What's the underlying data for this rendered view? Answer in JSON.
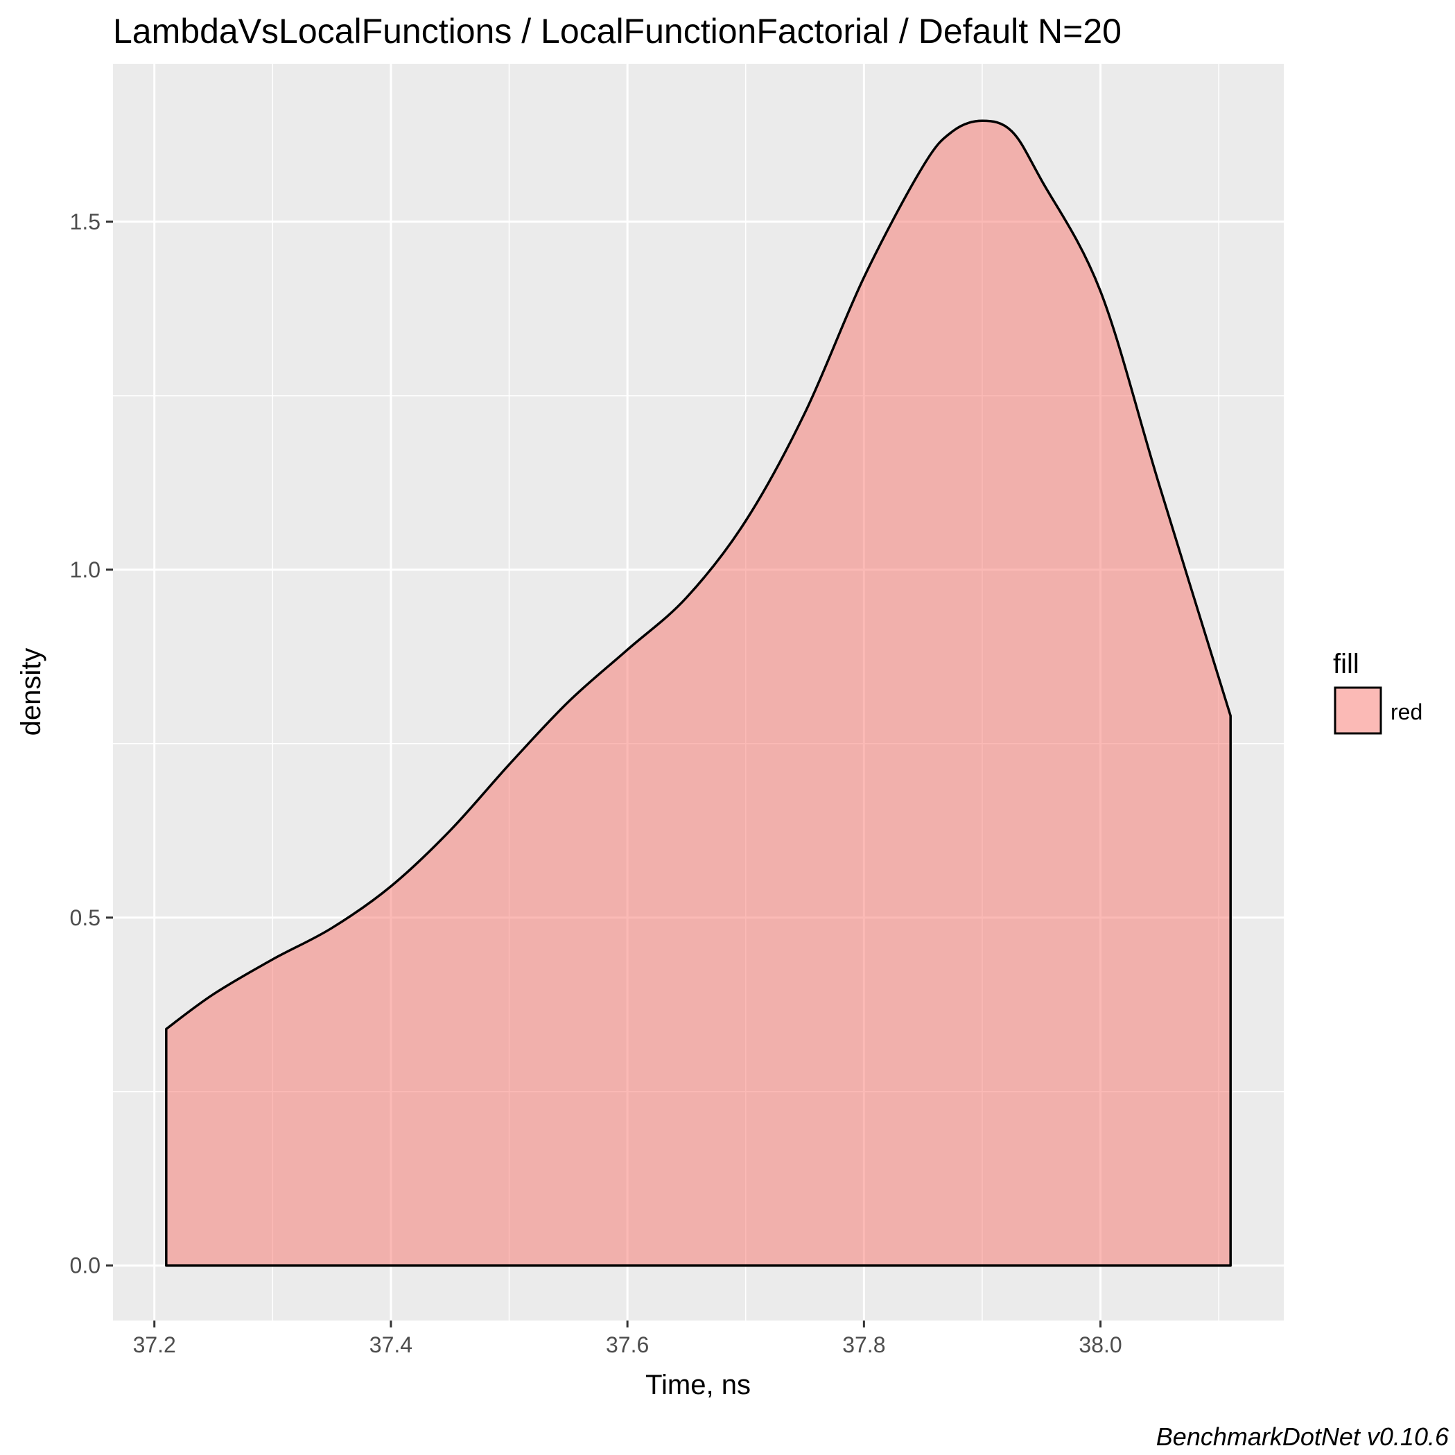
{
  "chart_data": {
    "type": "area",
    "title": "LambdaVsLocalFunctions / LocalFunctionFactorial / Default N=20",
    "xlabel": "Time, ns",
    "ylabel": "density",
    "caption": "BenchmarkDotNet v0.10.6",
    "xlim": [
      37.165,
      38.155
    ],
    "ylim": [
      -0.079,
      1.727
    ],
    "x_ticks": [
      37.2,
      37.4,
      37.6,
      37.8,
      38.0
    ],
    "x_tick_labels": [
      "37.2",
      "37.4",
      "37.6",
      "37.8",
      "38.0"
    ],
    "y_ticks": [
      0.0,
      0.5,
      1.0,
      1.5
    ],
    "y_tick_labels": [
      "0.0",
      "0.5",
      "1.0",
      "1.5"
    ],
    "grid": true,
    "legend": {
      "title": "fill",
      "position": "right",
      "entries": [
        {
          "label": "red",
          "color": "#f8766d"
        }
      ]
    },
    "colors": {
      "panel": "#ebebeb",
      "grid": "#ffffff",
      "fill": "#f8766d",
      "fill_opacity": 0.5,
      "line": "#000000"
    },
    "series": [
      {
        "name": "red",
        "x": [
          37.21,
          37.25,
          37.3,
          37.35,
          37.4,
          37.45,
          37.5,
          37.55,
          37.6,
          37.65,
          37.7,
          37.75,
          37.8,
          37.85,
          37.875,
          37.9,
          37.925,
          37.95,
          38.0,
          38.05,
          38.11
        ],
        "y": [
          0.34,
          0.39,
          0.44,
          0.485,
          0.545,
          0.625,
          0.72,
          0.81,
          0.885,
          0.96,
          1.07,
          1.225,
          1.42,
          1.58,
          1.63,
          1.645,
          1.63,
          1.56,
          1.4,
          1.12,
          0.79
        ]
      }
    ]
  }
}
